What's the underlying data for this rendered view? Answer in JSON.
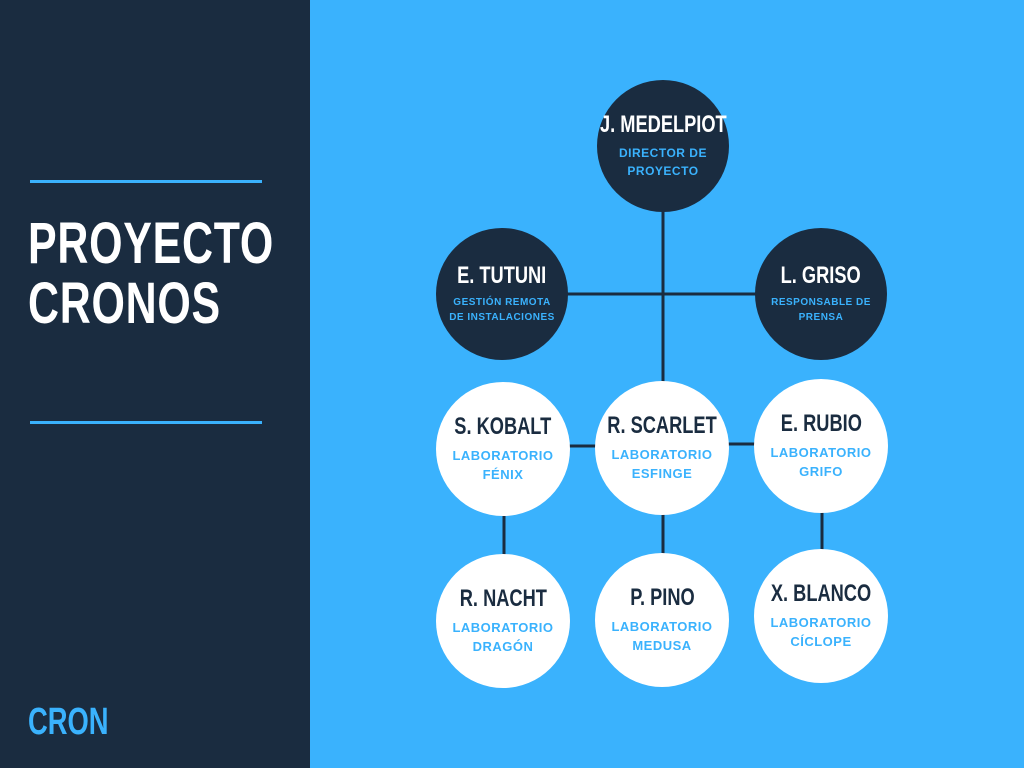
{
  "sidebar": {
    "title_line1": "PROYECTO",
    "title_line2": "CRONOS",
    "brand": "CRON"
  },
  "colors": {
    "navy": "#1a2c40",
    "sky": "#3ab2fd",
    "white": "#ffffff"
  },
  "chart": {
    "nodes": {
      "medelpiot": {
        "name": "J. MEDELPIOT",
        "role": [
          "DIRECTOR DE",
          "PROYECTO"
        ]
      },
      "tutuni": {
        "name": "E. TUTUNI",
        "role": [
          "GESTIÓN REMOTA",
          "DE INSTALACIONES"
        ]
      },
      "griso": {
        "name": "L. GRISO",
        "role": [
          "RESPONSABLE DE",
          "PRENSA"
        ]
      },
      "kobalt": {
        "name": "S. KOBALT",
        "role": [
          "LABORATORIO",
          "FÉNIX"
        ]
      },
      "scarlet": {
        "name": "R. SCARLET",
        "role": [
          "LABORATORIO",
          "ESFINGE"
        ]
      },
      "rubio": {
        "name": "E. RUBIO",
        "role": [
          "LABORATORIO",
          "GRIFO"
        ]
      },
      "nacht": {
        "name": "R. NACHT",
        "role": [
          "LABORATORIO",
          "DRAGÓN"
        ]
      },
      "pino": {
        "name": "P. PINO",
        "role": [
          "LABORATORIO",
          "MEDUSA"
        ]
      },
      "blanco": {
        "name": "X. BLANCO",
        "role": [
          "LABORATORIO",
          "CÍCLOPE"
        ]
      }
    }
  }
}
